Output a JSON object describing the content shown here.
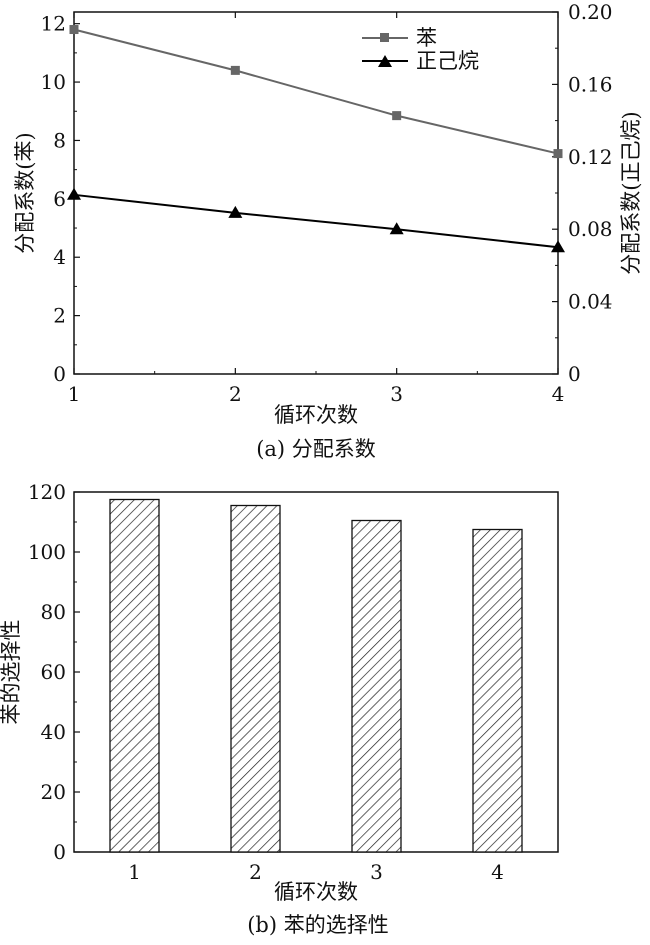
{
  "chart_data": [
    {
      "type": "line",
      "caption": "(a) 分配系数",
      "xlabel": "循环次数",
      "ylabel": "分配系数(苯)",
      "y2label": "分配系数(正己烷)",
      "x": [
        1,
        2,
        3,
        4
      ],
      "xticks": [
        "1",
        "2",
        "3",
        "4"
      ],
      "xlim": [
        1,
        4
      ],
      "ylim": [
        0,
        12.4
      ],
      "y2lim": [
        0,
        0.2
      ],
      "yticks": [
        "0",
        "2",
        "4",
        "6",
        "8",
        "10",
        "12"
      ],
      "y2ticks": [
        "0",
        "0.04",
        "0.08",
        "0.12",
        "0.16",
        "0.20"
      ],
      "legend_position": "top-right",
      "series": [
        {
          "name": "苯",
          "axis": "left",
          "marker": "square",
          "color": "#666666",
          "values": [
            11.8,
            10.4,
            8.85,
            7.55
          ]
        },
        {
          "name": "正己烷",
          "axis": "right",
          "marker": "triangle",
          "color": "#000000",
          "values": [
            0.099,
            0.089,
            0.08,
            0.07
          ]
        }
      ]
    },
    {
      "type": "bar",
      "caption": "(b) 苯的选择性",
      "xlabel": "循环次数",
      "ylabel": "苯的选择性",
      "categories": [
        "1",
        "2",
        "3",
        "4"
      ],
      "values": [
        117.5,
        115.5,
        110.5,
        107.5
      ],
      "ylim": [
        0,
        120
      ],
      "yticks": [
        "0",
        "20",
        "40",
        "60",
        "80",
        "100",
        "120"
      ],
      "pattern": "diagonal-hatch"
    }
  ]
}
